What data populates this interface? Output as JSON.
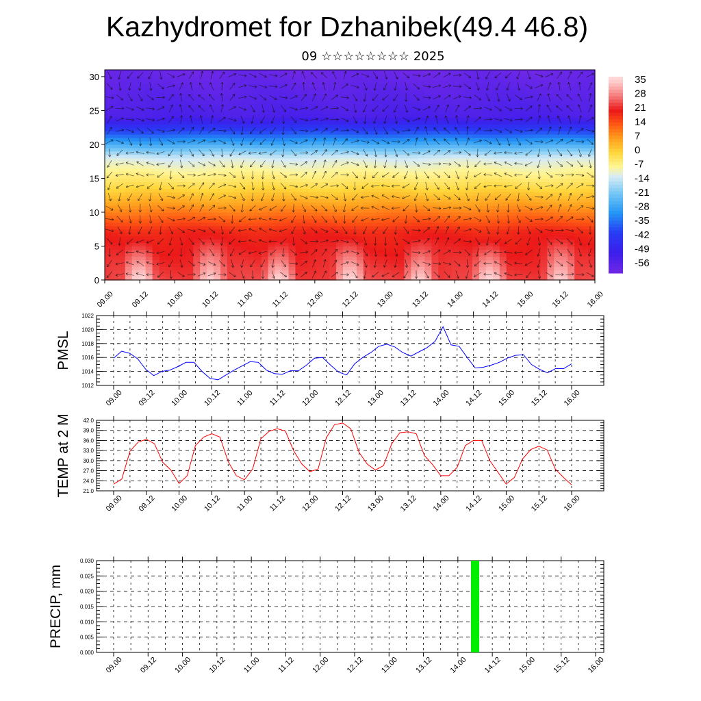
{
  "header": {
    "title": "Kazhydromet for Dzhanibek(49.4 46.8)",
    "subtitle": "09 ☆☆☆☆☆☆☆☆ 2025"
  },
  "chart_data": [
    {
      "type": "heatmap",
      "title": "Kazhydromet for Dzhanibek(49.4 46.8)",
      "subtitle": "09 ☆☆☆☆☆☆☆☆ 2025",
      "x_ticks": [
        "09.00",
        "09.12",
        "10.00",
        "10.12",
        "11.00",
        "11.12",
        "12.00",
        "12.12",
        "13.00",
        "13.12",
        "14.00",
        "14.12",
        "15.00",
        "15.12",
        "16.00"
      ],
      "y_ticks": [
        "0",
        "5",
        "10",
        "15",
        "20",
        "25",
        "30"
      ],
      "ylim": [
        0,
        31
      ],
      "colorbar_labels": [
        "35",
        "28",
        "21",
        "14",
        "7",
        "0",
        "-7",
        "-14",
        "-21",
        "-28",
        "-35",
        "-42",
        "-49",
        "-56"
      ],
      "color_range": [
        -60,
        38
      ],
      "wind_arrows": true
    },
    {
      "type": "line",
      "ylabel": "PMSL",
      "x_ticks": [
        "09.00",
        "09.12",
        "10.00",
        "10.12",
        "11.00",
        "11.12",
        "12.00",
        "12.12",
        "13.00",
        "13.12",
        "14.00",
        "14.12",
        "15.00",
        "15.12",
        "16.00"
      ],
      "y_ticks": [
        "1012",
        "1014",
        "1016",
        "1018",
        "1020",
        "1022"
      ],
      "ylim": [
        1012,
        1022
      ],
      "color": "#0000ff",
      "values": [
        1015.9,
        1016.9,
        1016.6,
        1015.8,
        1014.3,
        1013.4,
        1014.0,
        1014.2,
        1014.7,
        1015.3,
        1015.3,
        1014.0,
        1013.0,
        1012.8,
        1013.5,
        1014.2,
        1014.8,
        1015.4,
        1015.3,
        1014.2,
        1013.7,
        1013.6,
        1014.1,
        1014.1,
        1014.9,
        1015.9,
        1016.0,
        1014.9,
        1013.9,
        1013.5,
        1015.1,
        1016.0,
        1016.7,
        1017.6,
        1017.9,
        1017.5,
        1016.7,
        1016.2,
        1016.8,
        1017.4,
        1018.3,
        1020.4,
        1017.8,
        1017.6,
        1016.0,
        1014.5,
        1014.6,
        1014.9,
        1015.3,
        1015.9,
        1016.3,
        1016.4,
        1015.0,
        1014.3,
        1013.8,
        1014.4,
        1014.4,
        1015.1
      ]
    },
    {
      "type": "line",
      "ylabel": "TEMP at 2 M",
      "x_ticks": [
        "09.00",
        "09.12",
        "10.00",
        "10.12",
        "11.00",
        "11.12",
        "12.00",
        "12.12",
        "13.00",
        "13.12",
        "14.00",
        "14.12",
        "15.00",
        "15.12",
        "16.00"
      ],
      "y_ticks": [
        "21.0",
        "24.0",
        "27.0",
        "30.0",
        "33.0",
        "36.0",
        "39.0",
        "42.0"
      ],
      "ylim": [
        21,
        42
      ],
      "color": "#ff0000",
      "values": [
        23.0,
        24.5,
        32.8,
        35.5,
        36.4,
        35.0,
        29.5,
        27.2,
        23.2,
        25.5,
        34.5,
        37.0,
        38.0,
        37.0,
        29.7,
        25.5,
        24.3,
        27.5,
        36.5,
        38.7,
        39.5,
        38.8,
        33.0,
        29.0,
        26.7,
        27.5,
        36.8,
        40.7,
        41.2,
        39.5,
        32.5,
        29.0,
        27.2,
        28.5,
        35.0,
        38.3,
        38.6,
        38.0,
        31.5,
        28.8,
        25.5,
        25.5,
        28.0,
        34.5,
        36.0,
        36.0,
        30.0,
        26.5,
        23.0,
        25.0,
        30.5,
        33.3,
        34.3,
        33.2,
        27.5,
        25.0,
        22.8
      ]
    },
    {
      "type": "bar",
      "ylabel": "PRECIP, mm",
      "x_ticks": [
        "09.00",
        "09.12",
        "10.00",
        "10.12",
        "11.00",
        "11.12",
        "12.00",
        "12.12",
        "13.00",
        "13.12",
        "14.00",
        "14.12",
        "15.00",
        "15.12",
        "16.00"
      ],
      "y_ticks": [
        "0.000",
        "0.005",
        "0.010",
        "0.015",
        "0.020",
        "0.025",
        "0.030"
      ],
      "ylim": [
        0,
        0.03
      ],
      "color": "#00ee00",
      "bars": [
        {
          "day_offset": 5.25,
          "value": 0.03
        }
      ]
    }
  ]
}
